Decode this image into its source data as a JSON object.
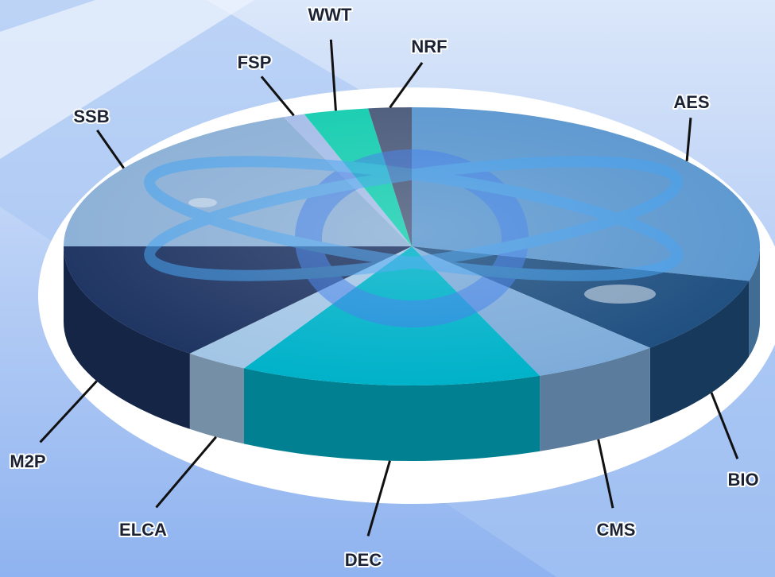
{
  "chart_data": {
    "type": "pie3d",
    "categories": [
      "AES",
      "BIO",
      "CMS",
      "DEC",
      "ELCA",
      "M2P",
      "SSB",
      "FSP",
      "WWT",
      "NRF"
    ],
    "values": [
      29,
      9,
      6,
      14,
      3,
      14,
      19,
      1,
      3,
      2
    ],
    "colors": [
      "#5b97cf",
      "#1f4f80",
      "#7eacda",
      "#00b2c9",
      "#a3c6e6",
      "#1e3462",
      "#8cb0d6",
      "#a6bde8",
      "#16cdb0",
      "#4c5b7c"
    ]
  }
}
